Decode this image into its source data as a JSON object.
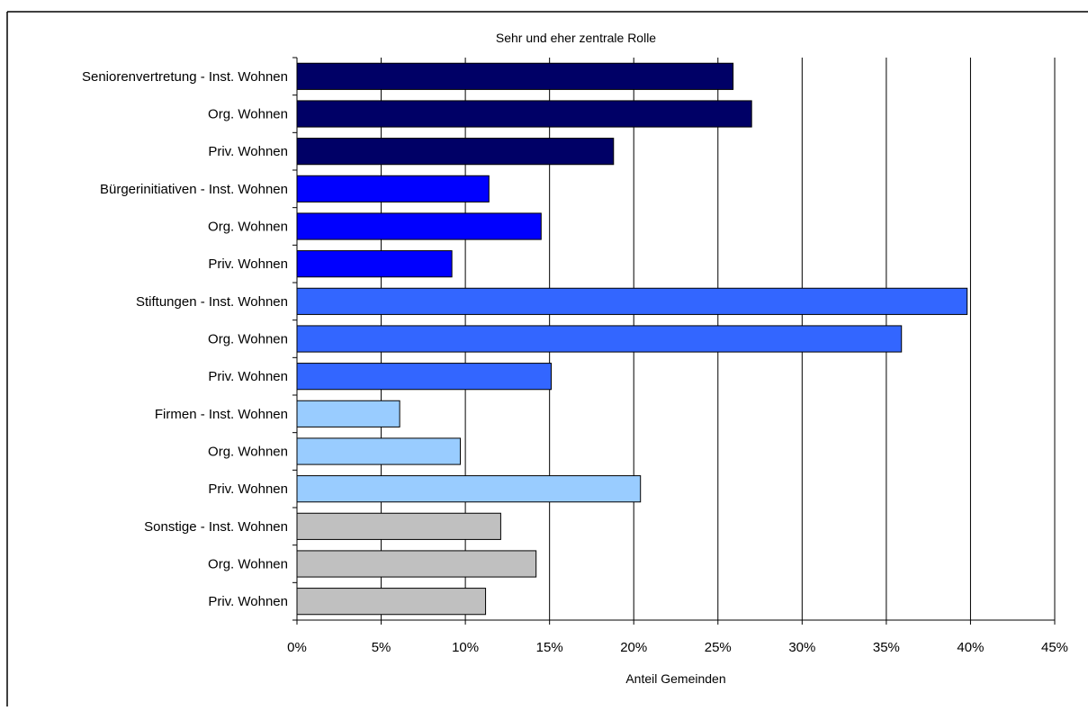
{
  "chart_data": {
    "type": "bar",
    "orientation": "horizontal",
    "title": "Sehr und eher zentrale Rolle",
    "xlabel": "Anteil Gemeinden",
    "ylabel": "",
    "xlim": [
      0,
      45
    ],
    "x_tick_values": [
      0,
      5,
      10,
      15,
      20,
      25,
      30,
      35,
      40,
      45
    ],
    "x_tick_labels": [
      "0%",
      "5%",
      "10%",
      "15%",
      "20%",
      "25%",
      "30%",
      "35%",
      "40%",
      "45%"
    ],
    "grid": "vertical",
    "legend": "none",
    "categories": [
      "Seniorenvertretung - Inst. Wohnen",
      "Org. Wohnen",
      "Priv. Wohnen",
      "Bürgerinitiativen - Inst. Wohnen",
      "Org. Wohnen",
      "Priv. Wohnen",
      "Stiftungen - Inst. Wohnen",
      "Org. Wohnen",
      "Priv. Wohnen",
      "Firmen - Inst. Wohnen",
      "Org. Wohnen",
      "Priv. Wohnen",
      "Sonstige - Inst. Wohnen",
      "Org. Wohnen",
      "Priv. Wohnen"
    ],
    "values": [
      25.9,
      27.0,
      18.8,
      11.4,
      14.5,
      9.2,
      39.8,
      35.9,
      15.1,
      6.1,
      9.7,
      20.4,
      12.1,
      14.2,
      11.2
    ],
    "bar_colors": [
      "#000066",
      "#000066",
      "#000066",
      "#0000ff",
      "#0000ff",
      "#0000ff",
      "#3366ff",
      "#3366ff",
      "#3366ff",
      "#99ccff",
      "#99ccff",
      "#99ccff",
      "#c0c0c0",
      "#c0c0c0",
      "#c0c0c0"
    ]
  }
}
